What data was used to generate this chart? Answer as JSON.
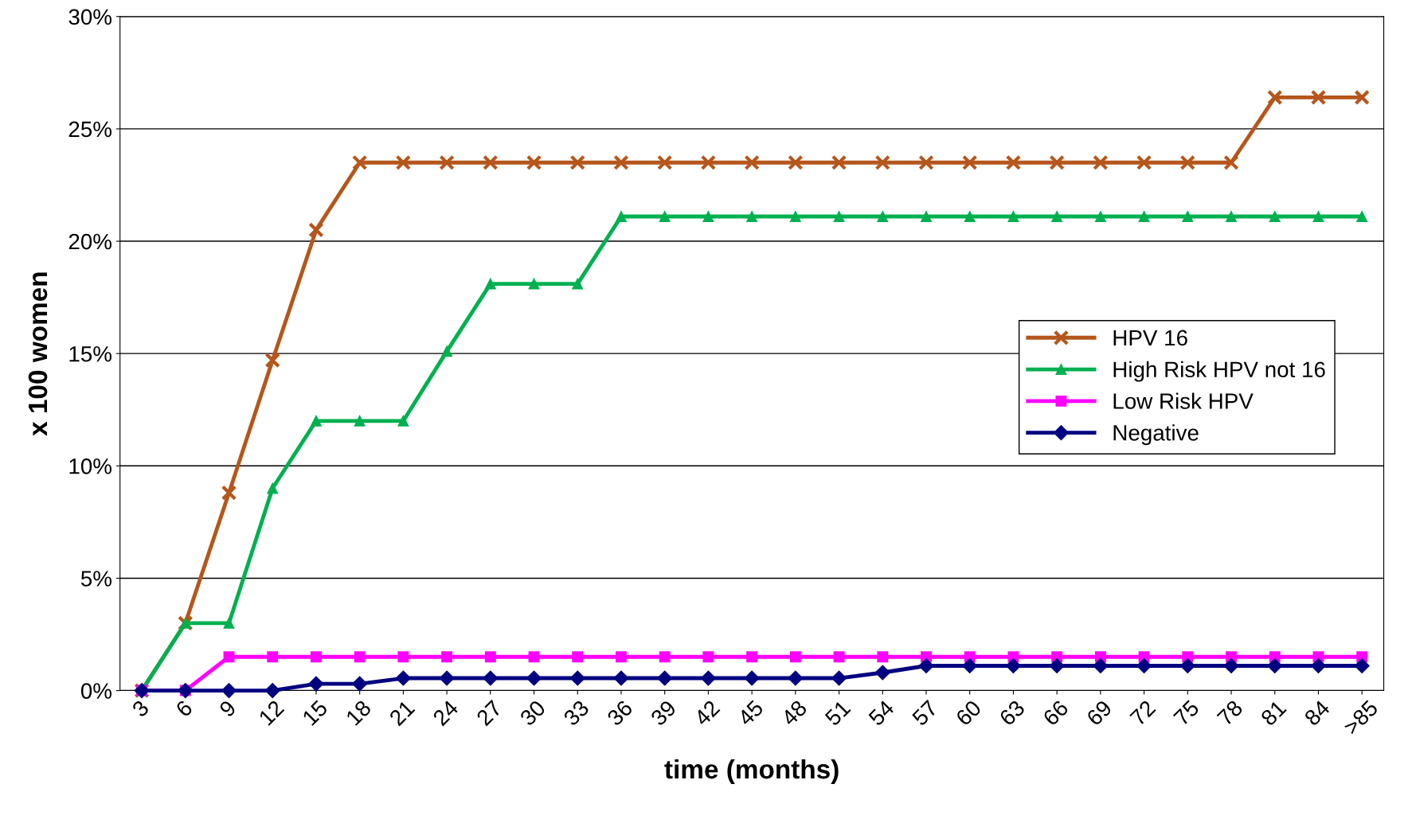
{
  "chart_data": {
    "type": "line",
    "xlabel": "time (months)",
    "ylabel": "x 100 women",
    "categories": [
      "3",
      "6",
      "9",
      "12",
      "15",
      "18",
      "21",
      "24",
      "27",
      "30",
      "33",
      "36",
      "39",
      "42",
      "45",
      "48",
      "51",
      "54",
      "57",
      "60",
      "63",
      "66",
      "69",
      "72",
      "75",
      "78",
      "81",
      "84",
      ">85"
    ],
    "series": [
      {
        "name": "HPV 16",
        "color": "#b5561c",
        "marker": "cross",
        "values": [
          0,
          3,
          8.8,
          14.7,
          20.5,
          23.5,
          23.5,
          23.5,
          23.5,
          23.5,
          23.5,
          23.5,
          23.5,
          23.5,
          23.5,
          23.5,
          23.5,
          23.5,
          23.5,
          23.5,
          23.5,
          23.5,
          23.5,
          23.5,
          23.5,
          23.5,
          26.4,
          26.4,
          26.4
        ]
      },
      {
        "name": "High Risk HPV not 16",
        "color": "#00b050",
        "marker": "triangle",
        "values": [
          0,
          3,
          3,
          9,
          12,
          12,
          12,
          15.1,
          18.1,
          18.1,
          18.1,
          21.1,
          21.1,
          21.1,
          21.1,
          21.1,
          21.1,
          21.1,
          21.1,
          21.1,
          21.1,
          21.1,
          21.1,
          21.1,
          21.1,
          21.1,
          21.1,
          21.1,
          21.1
        ]
      },
      {
        "name": "Low Risk HPV",
        "color": "#ff00ff",
        "marker": "square",
        "values": [
          0,
          0,
          1.5,
          1.5,
          1.5,
          1.5,
          1.5,
          1.5,
          1.5,
          1.5,
          1.5,
          1.5,
          1.5,
          1.5,
          1.5,
          1.5,
          1.5,
          1.5,
          1.5,
          1.5,
          1.5,
          1.5,
          1.5,
          1.5,
          1.5,
          1.5,
          1.5,
          1.5,
          1.5
        ]
      },
      {
        "name": "Negative",
        "color": "#000080",
        "marker": "diamond",
        "values": [
          0,
          0,
          0,
          0,
          0.3,
          0.3,
          0.55,
          0.55,
          0.55,
          0.55,
          0.55,
          0.55,
          0.55,
          0.55,
          0.55,
          0.55,
          0.55,
          0.8,
          1.1,
          1.1,
          1.1,
          1.1,
          1.1,
          1.1,
          1.1,
          1.1,
          1.1,
          1.1,
          1.1
        ]
      }
    ],
    "ylim": [
      0,
      30
    ],
    "yticks": [
      {
        "value": 0,
        "label": "0%"
      },
      {
        "value": 5,
        "label": "5%"
      },
      {
        "value": 10,
        "label": "10%"
      },
      {
        "value": 15,
        "label": "15%"
      },
      {
        "value": 20,
        "label": "20%"
      },
      {
        "value": 25,
        "label": "25%"
      },
      {
        "value": 30,
        "label": "30%"
      }
    ],
    "grid": "y",
    "legend": "center right",
    "line_style": "solid"
  }
}
